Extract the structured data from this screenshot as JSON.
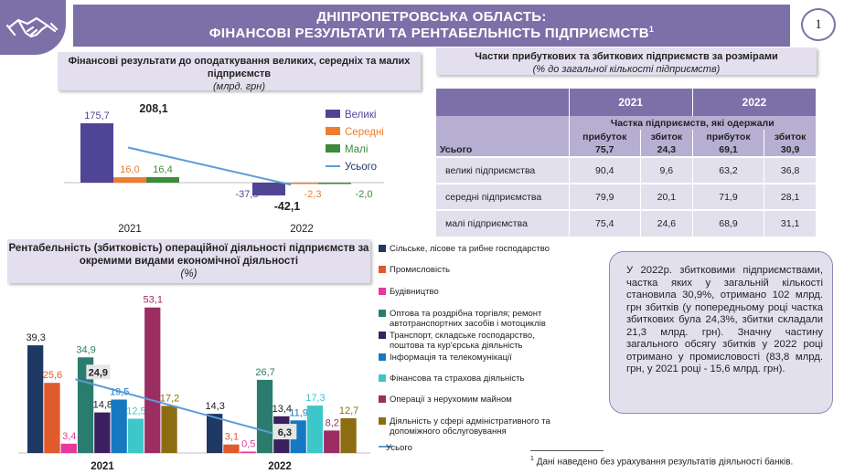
{
  "header": {
    "line1": "ДНІПРОПЕТРОВСЬКА ОБЛАСТЬ:",
    "line2": "ФІНАНСОВІ РЕЗУЛЬТАТИ ТА РЕНТАБЕЛЬНІСТЬ ПІДПРИЄМСТВ",
    "footnote_mark": "1",
    "page_number": "1",
    "logo_icon": "handshake-icon"
  },
  "colors": {
    "brand": "#7d70a8",
    "large": "#4f4594",
    "medium": "#ec7d31",
    "small": "#3d8a3a",
    "total": "#5b9bd5"
  },
  "financial_results": {
    "title": "Фінансові результати до оподаткування великих, середніх та малих підприємств",
    "subtitle": "(млрд. грн)"
  },
  "shares": {
    "title": "Частки прибуткових та збиткових підприємств за розмірами",
    "subtitle": "(% до загальної кількості підприємств)",
    "years": [
      "2021",
      "2022"
    ],
    "group_header": "Частка підприємств,  які одержали",
    "col_headers": [
      "прибуток",
      "збиток",
      "прибуток",
      "збиток"
    ],
    "total_label": "Усього",
    "total_values": [
      "75,7",
      "24,3",
      "69,1",
      "30,9"
    ],
    "rows": [
      {
        "label": "великі підприємства",
        "values": [
          "90,4",
          "9,6",
          "63,2",
          "36,8"
        ]
      },
      {
        "label": "середні підприємства",
        "values": [
          "79,9",
          "20,1",
          "71,9",
          "28,1"
        ]
      },
      {
        "label": "малі підприємства",
        "values": [
          "75,4",
          "24,6",
          "68,9",
          "31,1"
        ]
      }
    ]
  },
  "profitability": {
    "title": "Рентабельність (збитковість) операційної діяльності підприємств за окремими видами економічної діяльності",
    "subtitle": "(%)"
  },
  "note": "У 2022р. збитковими підприємствами, частка яких у загальній кількості становила 30,9%, отримано 102 млрд. грн збитків (у попередньому році частка збиткових була 24,3%, збитки складали 21,3 млрд. грн). Значну частину загального обсягу збитків у 2022 році отримано у промисловості (83,8 млрд. грн, у 2021 році - 15,6 млрд. грн).",
  "footnote": "Дані наведено без урахування результатів діяльності банків.",
  "footnote_mark": "1",
  "chart_data": [
    {
      "type": "bar",
      "categories": [
        "2021",
        "2022"
      ],
      "series": [
        {
          "name": "Великі",
          "type": "bar",
          "values": [
            175.7,
            -37.8
          ],
          "labels": [
            "175,7",
            "-37,8"
          ],
          "color": "#4f4594"
        },
        {
          "name": "Середні",
          "type": "bar",
          "values": [
            16.0,
            -2.3
          ],
          "labels": [
            "16,0",
            "-2,3"
          ],
          "color": "#ec7d31"
        },
        {
          "name": "Малі",
          "type": "bar",
          "values": [
            16.4,
            -2.0
          ],
          "labels": [
            "16,4",
            "-2,0"
          ],
          "color": "#3d8a3a"
        },
        {
          "name": "Усього",
          "type": "line",
          "values": [
            208.1,
            -42.1
          ],
          "labels": [
            "208,1",
            "-42,1"
          ],
          "color": "#5b9bd5"
        }
      ],
      "legend_position": "right"
    },
    {
      "type": "bar",
      "categories": [
        "2021",
        "2022"
      ],
      "series": [
        {
          "name": "Сільське, лісове та рибне господарство",
          "type": "bar",
          "values": [
            39.3,
            14.3
          ],
          "labels": [
            "39,3",
            "14,3"
          ],
          "color": "#1f3864"
        },
        {
          "name": "Промисловість",
          "type": "bar",
          "values": [
            25.6,
            3.1
          ],
          "labels": [
            "25,6",
            "3,1"
          ],
          "color": "#e05a2b"
        },
        {
          "name": "Будівництво",
          "type": "bar",
          "values": [
            3.4,
            0.5
          ],
          "labels": [
            "3,4",
            "0,5"
          ],
          "color": "#e8389b"
        },
        {
          "name": "Оптова та роздрібна торгівля; ремонт автотранспортних засобів і мотоциклів",
          "type": "bar",
          "values": [
            34.9,
            26.7
          ],
          "labels": [
            "34,9",
            "26,7"
          ],
          "color": "#2a7d6e"
        },
        {
          "name": "Транспорт, складське господарство, поштова та кур'єрська діяльність",
          "type": "bar",
          "values": [
            14.8,
            13.4
          ],
          "labels": [
            "14,8",
            "13,4"
          ],
          "color": "#3b1f5e"
        },
        {
          "name": "Інформація та телекомунікації",
          "type": "bar",
          "values": [
            19.5,
            11.9
          ],
          "labels": [
            "19,5",
            "11,9"
          ],
          "color": "#1678c2"
        },
        {
          "name": "Фінансова та страхова діяльність",
          "type": "bar",
          "values": [
            12.5,
            17.3
          ],
          "labels": [
            "12,5",
            "17,3"
          ],
          "color": "#3ec7c9"
        },
        {
          "name": "Операції з нерухомим майном",
          "type": "bar",
          "values": [
            53.1,
            8.2
          ],
          "labels": [
            "53,1",
            "8,2"
          ],
          "color": "#9b2d63"
        },
        {
          "name": "Діяльність у сфері адміністративного та допоміжного обслуговування",
          "type": "bar",
          "values": [
            17.2,
            12.7
          ],
          "labels": [
            "17,2",
            "12,7"
          ],
          "color": "#8c6d12"
        },
        {
          "name": "Усього",
          "type": "line",
          "values": [
            24.9,
            6.3
          ],
          "labels": [
            "24,9",
            "6,3"
          ],
          "color": "#5b9bd5"
        }
      ],
      "legend_position": "right"
    }
  ]
}
